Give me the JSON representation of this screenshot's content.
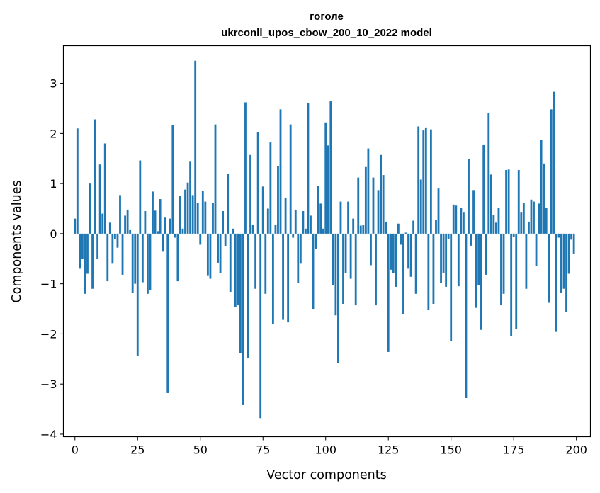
{
  "chart_data": {
    "type": "bar",
    "title": "гоголе",
    "subtitle": "ukrconll_upos_cbow_200_10_2022 model",
    "xlabel": "Vector components",
    "ylabel": "Components values",
    "xlim": [
      -4.6,
      205.6
    ],
    "ylim": [
      -4.05,
      3.75
    ],
    "xticks": [
      0,
      25,
      50,
      75,
      100,
      125,
      150,
      175,
      200
    ],
    "xtick_labels": [
      "0",
      "25",
      "50",
      "75",
      "100",
      "125",
      "150",
      "175",
      "200"
    ],
    "yticks": [
      -4,
      -3,
      -2,
      -1,
      0,
      1,
      2,
      3
    ],
    "ytick_labels": [
      "−4",
      "−3",
      "−2",
      "−1",
      "0",
      "1",
      "2",
      "3"
    ],
    "bar_color": "#1f77b4",
    "grid": false,
    "x": [
      0,
      1,
      2,
      3,
      4,
      5,
      6,
      7,
      8,
      9,
      10,
      11,
      12,
      13,
      14,
      15,
      16,
      17,
      18,
      19,
      20,
      21,
      22,
      23,
      24,
      25,
      26,
      27,
      28,
      29,
      30,
      31,
      32,
      33,
      34,
      35,
      36,
      37,
      38,
      39,
      40,
      41,
      42,
      43,
      44,
      45,
      46,
      47,
      48,
      49,
      50,
      51,
      52,
      53,
      54,
      55,
      56,
      57,
      58,
      59,
      60,
      61,
      62,
      63,
      64,
      65,
      66,
      67,
      68,
      69,
      70,
      71,
      72,
      73,
      74,
      75,
      76,
      77,
      78,
      79,
      80,
      81,
      82,
      83,
      84,
      85,
      86,
      87,
      88,
      89,
      90,
      91,
      92,
      93,
      94,
      95,
      96,
      97,
      98,
      99,
      100,
      101,
      102,
      103,
      104,
      105,
      106,
      107,
      108,
      109,
      110,
      111,
      112,
      113,
      114,
      115,
      116,
      117,
      118,
      119,
      120,
      121,
      122,
      123,
      124,
      125,
      126,
      127,
      128,
      129,
      130,
      131,
      132,
      133,
      134,
      135,
      136,
      137,
      138,
      139,
      140,
      141,
      142,
      143,
      144,
      145,
      146,
      147,
      148,
      149,
      150,
      151,
      152,
      153,
      154,
      155,
      156,
      157,
      158,
      159,
      160,
      161,
      162,
      163,
      164,
      165,
      166,
      167,
      168,
      169,
      170,
      171,
      172,
      173,
      174,
      175,
      176,
      177,
      178,
      179,
      180,
      181,
      182,
      183,
      184,
      185,
      186,
      187,
      188,
      189,
      190,
      191,
      192,
      193,
      194,
      195,
      196,
      197,
      198,
      199
    ],
    "values": [
      0.3,
      2.1,
      -0.7,
      -0.5,
      -1.2,
      -0.8,
      1.0,
      -1.1,
      2.28,
      -0.5,
      1.38,
      0.4,
      1.8,
      -0.95,
      0.22,
      -0.6,
      -0.1,
      -0.28,
      0.77,
      -0.82,
      0.36,
      0.48,
      0.07,
      -1.18,
      -1.0,
      -2.44,
      1.46,
      -0.97,
      0.45,
      -1.2,
      -1.12,
      0.84,
      0.46,
      0.05,
      0.69,
      -0.36,
      0.32,
      -3.18,
      0.3,
      2.17,
      -0.08,
      -0.95,
      0.75,
      0.1,
      0.88,
      1.02,
      1.45,
      0.77,
      3.45,
      0.61,
      -0.22,
      0.86,
      0.64,
      -0.83,
      -0.9,
      0.62,
      2.18,
      -0.58,
      -0.78,
      0.45,
      -0.25,
      1.2,
      -1.16,
      0.1,
      -1.47,
      -1.43,
      -2.38,
      -3.42,
      2.62,
      -2.48,
      1.57,
      0.18,
      -1.1,
      2.02,
      -3.68,
      0.94,
      -1.2,
      0.5,
      1.82,
      -1.8,
      0.18,
      1.35,
      2.48,
      -1.72,
      0.72,
      -1.77,
      2.18,
      -0.08,
      0.48,
      -0.98,
      -0.6,
      0.45,
      0.1,
      2.6,
      0.36,
      -1.5,
      -0.3,
      0.95,
      0.6,
      0.1,
      2.22,
      1.76,
      2.64,
      -1.02,
      -1.63,
      -2.58,
      0.64,
      -1.4,
      -0.78,
      0.64,
      -0.9,
      0.3,
      -1.43,
      1.12,
      0.16,
      0.18,
      1.33,
      1.7,
      -0.63,
      1.12,
      -1.43,
      0.87,
      1.57,
      1.17,
      0.24,
      -2.36,
      -0.72,
      -0.78,
      -1.06,
      0.2,
      -0.22,
      -1.6,
      0.02,
      -0.7,
      -0.86,
      0.26,
      -1.2,
      2.14,
      1.08,
      2.06,
      2.12,
      -1.52,
      2.08,
      -1.4,
      0.28,
      0.9,
      -0.98,
      -0.78,
      -1.06,
      -0.1,
      -2.15,
      0.58,
      0.56,
      -1.05,
      0.52,
      0.42,
      -3.28,
      1.49,
      -0.24,
      0.87,
      -1.48,
      -1.02,
      -1.92,
      1.78,
      -0.82,
      2.4,
      1.18,
      0.38,
      0.22,
      0.52,
      -1.43,
      -1.2,
      1.27,
      1.28,
      -2.05,
      -0.06,
      -1.9,
      1.27,
      0.42,
      0.62,
      -1.1,
      0.24,
      0.68,
      0.64,
      -0.65,
      0.6,
      1.87,
      1.4,
      0.52,
      -1.38,
      2.48,
      2.83,
      -1.96,
      -0.08,
      -1.18,
      -1.1,
      -1.56,
      -0.8,
      -0.12,
      -0.4
    ]
  }
}
